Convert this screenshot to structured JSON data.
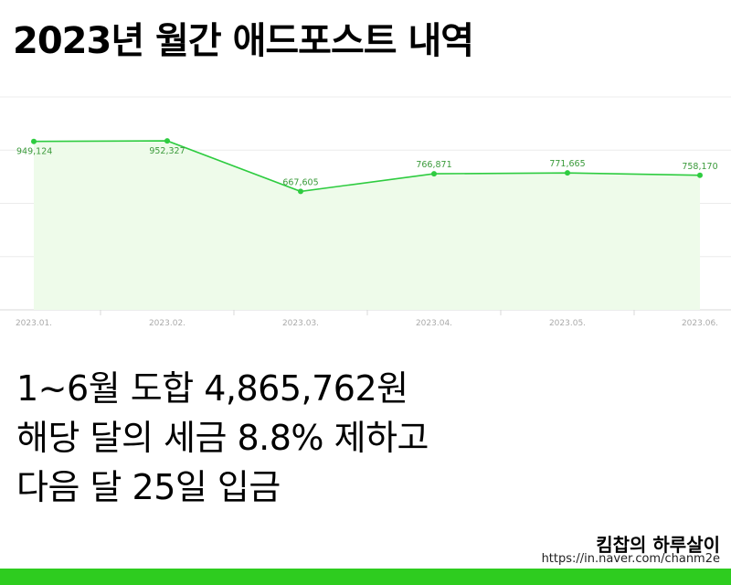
{
  "title": "2023년 월간 애드포스트 내역",
  "chart_data": {
    "type": "area",
    "title": "",
    "xlabel": "",
    "ylabel": "",
    "x": [
      "2023.01.",
      "2023.02.",
      "2023.03.",
      "2023.04.",
      "2023.05.",
      "2023.06."
    ],
    "series": [
      {
        "values": [
          949124,
          952327,
          667605,
          766871,
          771665,
          758170
        ],
        "labels": [
          "949,124",
          "952,327",
          "667,605",
          "766,871",
          "771,665",
          "758,170"
        ]
      }
    ],
    "ylim": [
      0,
      1200000
    ],
    "grid": true,
    "legend": "none",
    "line_color": "#2ecc40",
    "fill_color": "#eefbea"
  },
  "body": {
    "line1": "1~6월 도합 4,865,762원",
    "line2": "해당 달의 세금 8.8% 제하고",
    "line3": "다음 달 25일 입금"
  },
  "footer": {
    "brand": "킴찹의 하루살이",
    "url": "https://in.naver.com/chanm2e"
  },
  "colors": {
    "bottom_bar": "#2ecc1f"
  }
}
